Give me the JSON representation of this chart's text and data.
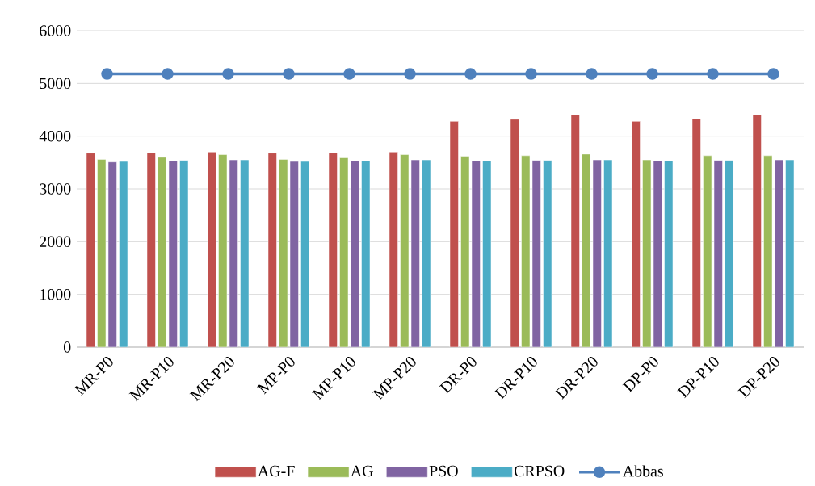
{
  "chart_data": {
    "type": "bar",
    "categories": [
      "MR-P0",
      "MR-P10",
      "MR-P20",
      "MP-P0",
      "MP-P10",
      "MP-P20",
      "DR-P0",
      "DR-P10",
      "DR-P20",
      "DP-P0",
      "DP-P10",
      "DP-P20"
    ],
    "series": [
      {
        "name": "AG-F",
        "color": "#c0504d",
        "values": [
          3680,
          3690,
          3700,
          3680,
          3690,
          3700,
          4280,
          4320,
          4410,
          4280,
          4330,
          4410
        ]
      },
      {
        "name": "AG",
        "color": "#9bbb59",
        "values": [
          3560,
          3600,
          3650,
          3560,
          3590,
          3650,
          3620,
          3630,
          3660,
          3550,
          3630,
          3630
        ]
      },
      {
        "name": "PSO",
        "color": "#8064a2",
        "values": [
          3510,
          3530,
          3550,
          3520,
          3530,
          3550,
          3530,
          3540,
          3550,
          3530,
          3540,
          3550
        ]
      },
      {
        "name": "CRPSO",
        "color": "#4bacc6",
        "values": [
          3520,
          3540,
          3550,
          3520,
          3530,
          3550,
          3530,
          3540,
          3550,
          3530,
          3540,
          3550
        ]
      },
      {
        "name": "Abbas",
        "type": "line",
        "color": "#4f81bd",
        "marker": "circle",
        "values": [
          5180,
          5180,
          5180,
          5180,
          5180,
          5180,
          5180,
          5180,
          5180,
          5180,
          5180,
          5180
        ]
      }
    ],
    "ylim": [
      0,
      6000
    ],
    "yticks": [
      0,
      1000,
      2000,
      3000,
      4000,
      5000,
      6000
    ],
    "grid": "y",
    "legend": "bottom"
  }
}
